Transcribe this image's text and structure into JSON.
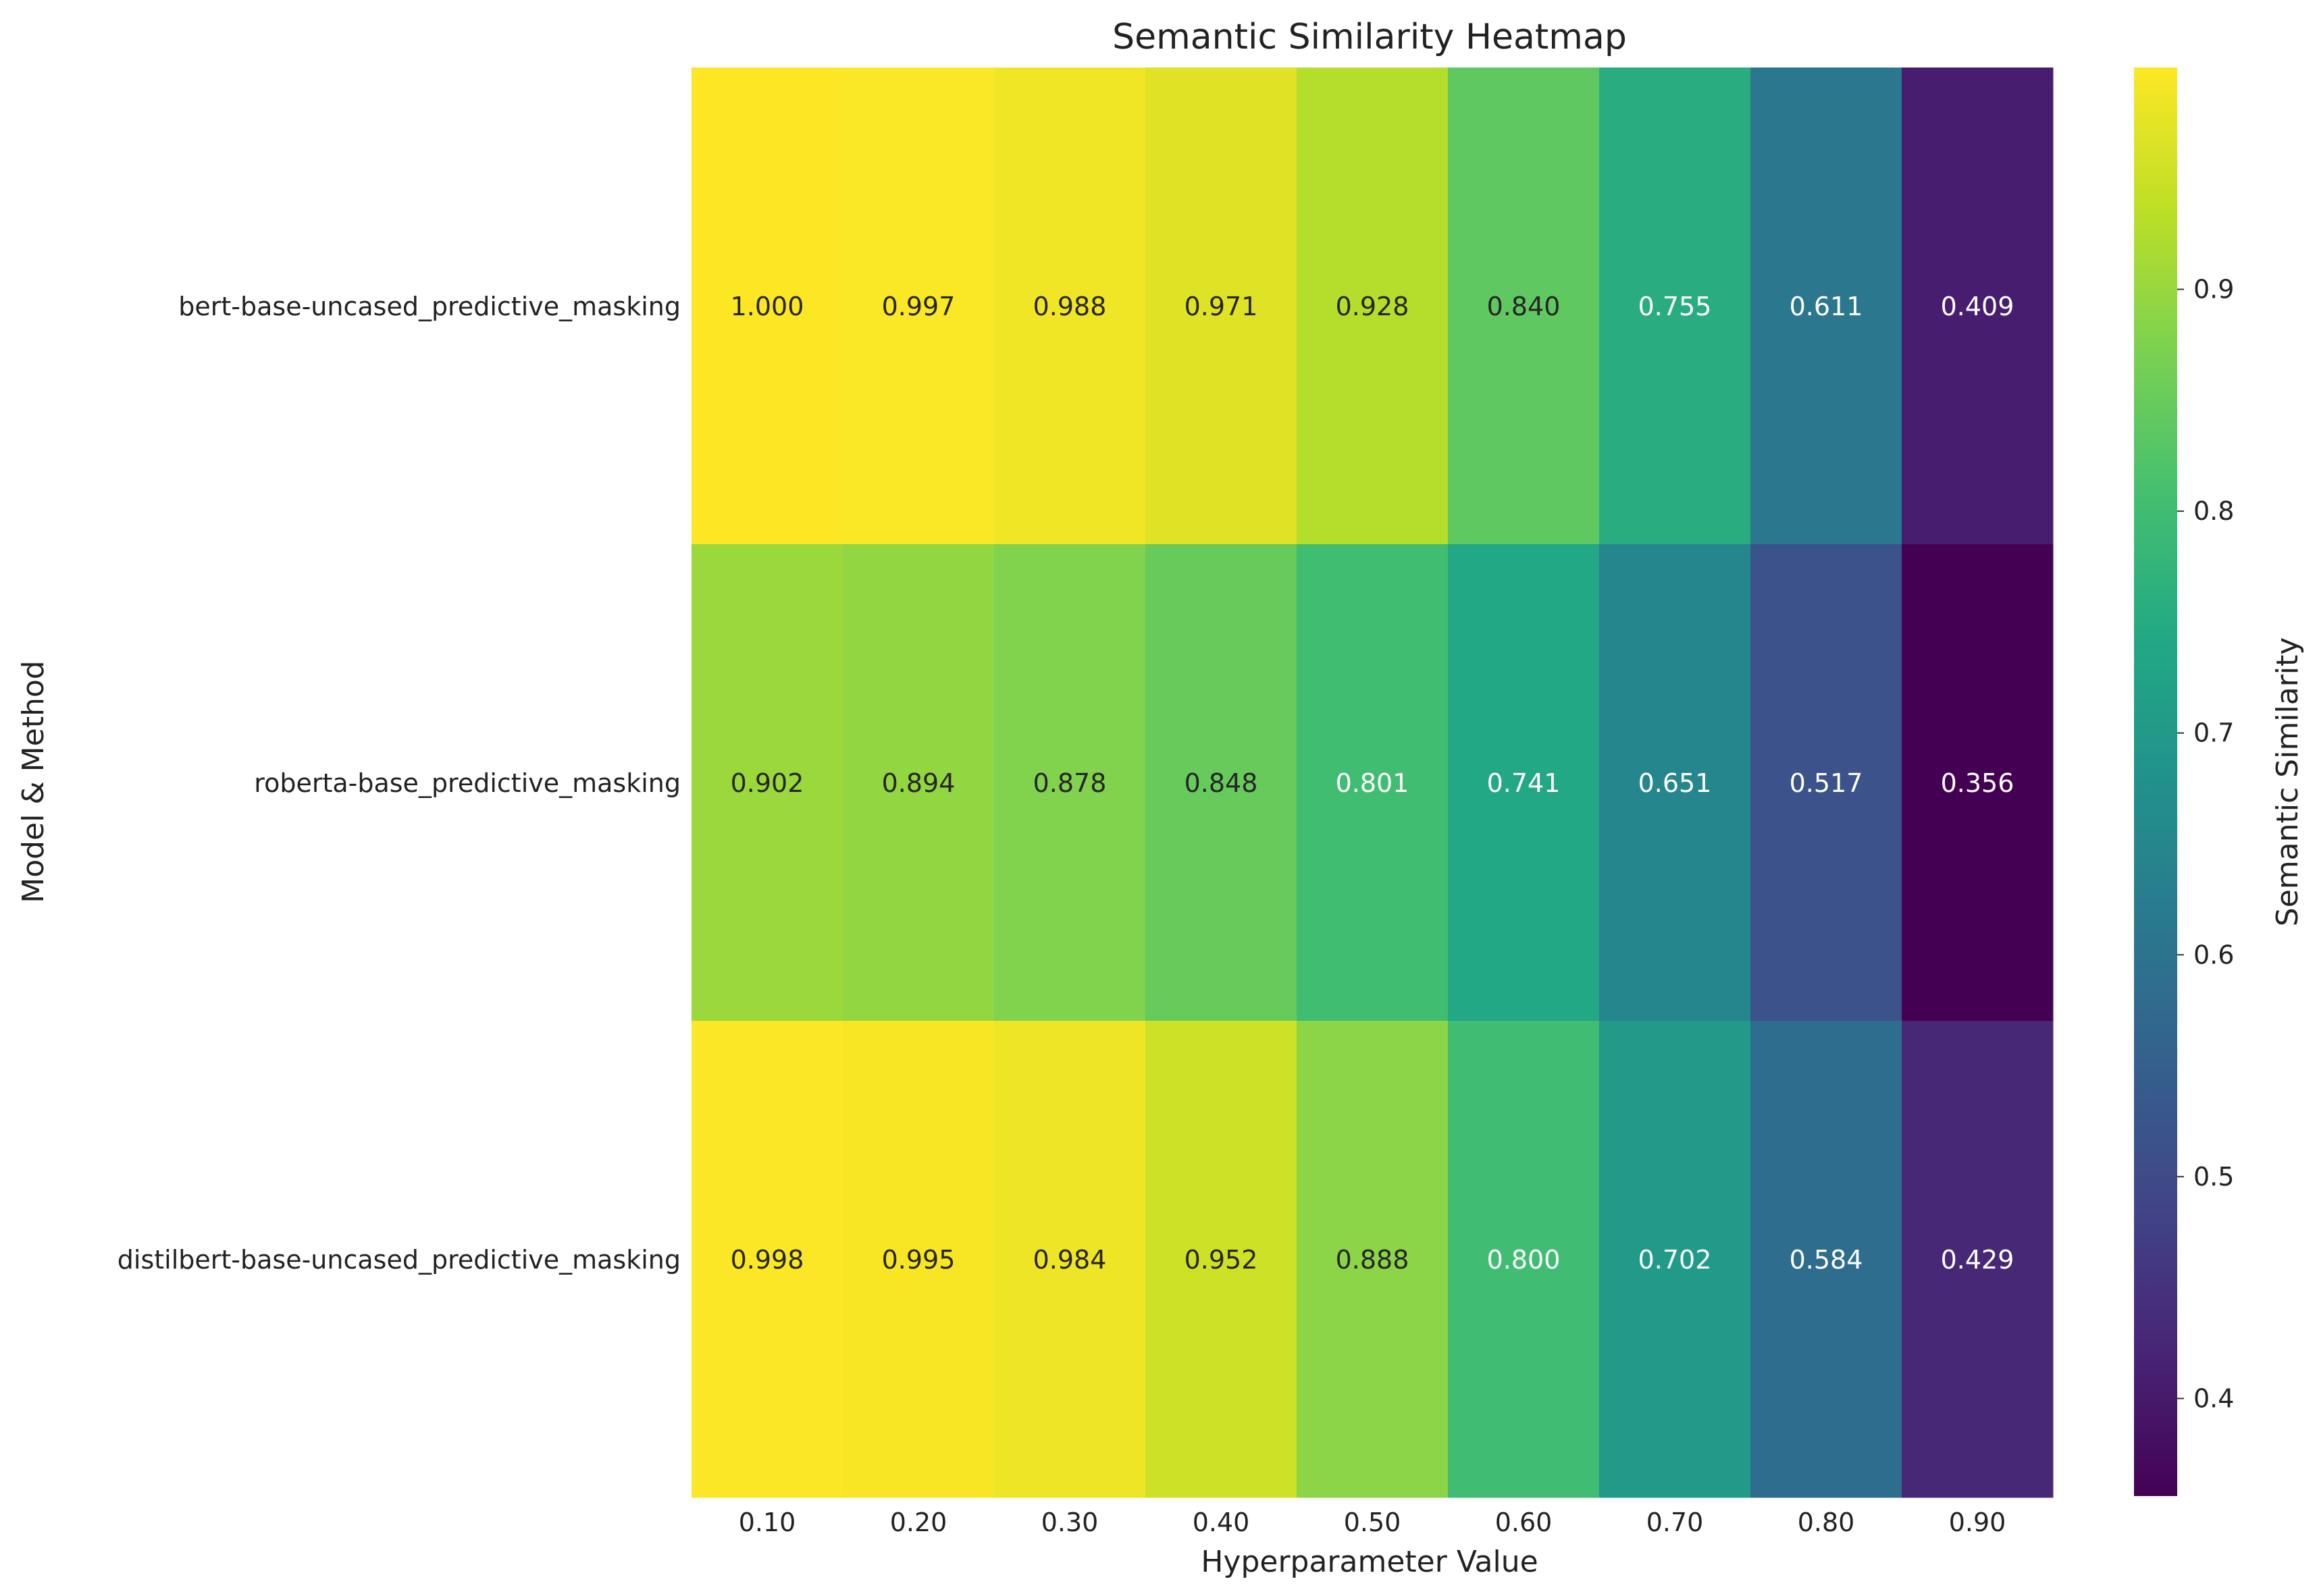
{
  "chart_data": {
    "type": "heatmap",
    "title": "Semantic Similarity Heatmap",
    "xlabel": "Hyperparameter Value",
    "ylabel": "Model & Method",
    "x_categories": [
      "0.10",
      "0.20",
      "0.30",
      "0.40",
      "0.50",
      "0.60",
      "0.70",
      "0.80",
      "0.90"
    ],
    "y_categories": [
      "bert-base-uncased_predictive_masking",
      "roberta-base_predictive_masking",
      "distilbert-base-uncased_predictive_masking"
    ],
    "values": [
      [
        1.0,
        0.997,
        0.988,
        0.971,
        0.928,
        0.84,
        0.755,
        0.611,
        0.409
      ],
      [
        0.902,
        0.894,
        0.878,
        0.848,
        0.801,
        0.741,
        0.651,
        0.517,
        0.356
      ],
      [
        0.998,
        0.995,
        0.984,
        0.952,
        0.888,
        0.8,
        0.702,
        0.584,
        0.429
      ]
    ],
    "value_labels": [
      [
        "1.000",
        "0.997",
        "0.988",
        "0.971",
        "0.928",
        "0.840",
        "0.755",
        "0.611",
        "0.409"
      ],
      [
        "0.902",
        "0.894",
        "0.878",
        "0.848",
        "0.801",
        "0.741",
        "0.651",
        "0.517",
        "0.356"
      ],
      [
        "0.998",
        "0.995",
        "0.984",
        "0.952",
        "0.888",
        "0.800",
        "0.702",
        "0.584",
        "0.429"
      ]
    ],
    "colormap": "viridis",
    "colorbar": {
      "label": "Semantic Similarity",
      "range": [
        0.356,
        1.0
      ],
      "ticks": [
        "0.4",
        "0.5",
        "0.6",
        "0.7",
        "0.8",
        "0.9"
      ]
    },
    "grid": false
  }
}
